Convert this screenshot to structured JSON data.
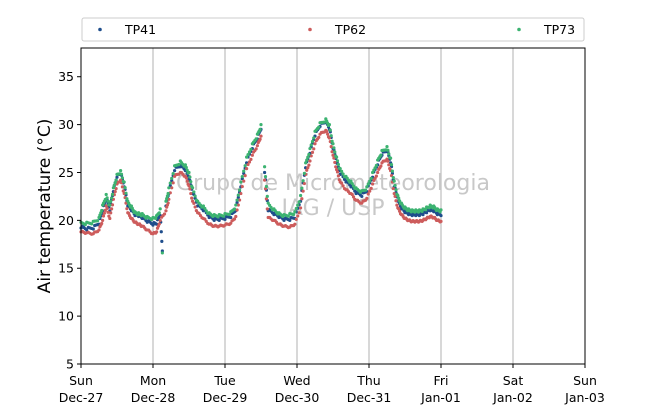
{
  "chart_data": {
    "type": "scatter",
    "ylabel": "Air temperature (°C)",
    "ylim": [
      5,
      38
    ],
    "xlim": [
      "2020-12-27",
      "2021-01-03"
    ],
    "grid": "vertical lines at each day",
    "legend": "top, above plot, horizontal",
    "yticks": [
      "5",
      "10",
      "15",
      "20",
      "25",
      "30",
      "35"
    ],
    "xticks": [
      {
        "day": "Sun",
        "date": "Dec-27"
      },
      {
        "day": "Mon",
        "date": "Dec-28"
      },
      {
        "day": "Tue",
        "date": "Dec-29"
      },
      {
        "day": "Wed",
        "date": "Dec-30"
      },
      {
        "day": "Thu",
        "date": "Dec-31"
      },
      {
        "day": "Fri",
        "date": "Jan-01"
      },
      {
        "day": "Sat",
        "date": "Jan-02"
      },
      {
        "day": "Sun",
        "date": "Jan-03"
      }
    ],
    "watermark": [
      "Grupo de Micrometeorologia",
      "IAG / USP"
    ],
    "x_unit": "days since Dec-27 00:00",
    "series": [
      {
        "name": "TP41",
        "color": "#1f4e8c",
        "points": [
          [
            0.0,
            19.2
          ],
          [
            0.08,
            19.0
          ],
          [
            0.17,
            19.1
          ],
          [
            0.25,
            19.6
          ],
          [
            0.3,
            21.0
          ],
          [
            0.35,
            22.2
          ],
          [
            0.4,
            21.0
          ],
          [
            0.45,
            23.0
          ],
          [
            0.5,
            24.5
          ],
          [
            0.55,
            24.8
          ],
          [
            0.6,
            23.5
          ],
          [
            0.65,
            21.5
          ],
          [
            0.7,
            21.0
          ],
          [
            0.75,
            20.5
          ],
          [
            0.8,
            20.4
          ],
          [
            0.85,
            20.2
          ],
          [
            0.92,
            19.8
          ],
          [
            1.0,
            19.5
          ],
          [
            1.05,
            19.6
          ],
          [
            1.1,
            20.5
          ],
          [
            1.13,
            16.8
          ],
          [
            1.18,
            21.5
          ],
          [
            1.22,
            22.8
          ],
          [
            1.3,
            25.2
          ],
          [
            1.38,
            25.6
          ],
          [
            1.45,
            25.2
          ],
          [
            1.5,
            24.3
          ],
          [
            1.55,
            22.8
          ],
          [
            1.62,
            21.5
          ],
          [
            1.7,
            21.0
          ],
          [
            1.78,
            20.3
          ],
          [
            1.85,
            20.0
          ],
          [
            1.92,
            20.0
          ],
          [
            2.0,
            20.1
          ],
          [
            2.08,
            20.3
          ],
          [
            2.15,
            21.0
          ],
          [
            2.22,
            23.5
          ],
          [
            2.3,
            26.0
          ],
          [
            2.38,
            27.5
          ],
          [
            2.45,
            28.5
          ],
          [
            2.5,
            29.5
          ],
          [
            2.55,
            25.0
          ],
          [
            2.6,
            21.0
          ],
          [
            2.68,
            20.6
          ],
          [
            2.75,
            20.3
          ],
          [
            2.82,
            20.0
          ],
          [
            2.9,
            20.0
          ],
          [
            2.97,
            20.2
          ],
          [
            3.05,
            22.0
          ],
          [
            3.12,
            25.5
          ],
          [
            3.18,
            27.0
          ],
          [
            3.25,
            28.8
          ],
          [
            3.32,
            29.8
          ],
          [
            3.4,
            30.2
          ],
          [
            3.45,
            29.5
          ],
          [
            3.5,
            27.5
          ],
          [
            3.55,
            26.0
          ],
          [
            3.6,
            24.8
          ],
          [
            3.68,
            24.0
          ],
          [
            3.75,
            23.5
          ],
          [
            3.82,
            22.8
          ],
          [
            3.9,
            22.5
          ],
          [
            3.97,
            23.0
          ],
          [
            4.05,
            24.5
          ],
          [
            4.12,
            25.8
          ],
          [
            4.18,
            26.8
          ],
          [
            4.25,
            27.2
          ],
          [
            4.3,
            26.0
          ],
          [
            4.35,
            23.5
          ],
          [
            4.4,
            22.0
          ],
          [
            4.45,
            21.2
          ],
          [
            4.5,
            20.8
          ],
          [
            4.55,
            20.6
          ],
          [
            4.6,
            20.5
          ],
          [
            4.65,
            20.5
          ],
          [
            4.7,
            20.5
          ],
          [
            4.75,
            20.6
          ],
          [
            4.8,
            20.8
          ],
          [
            4.85,
            21.0
          ],
          [
            4.9,
            20.9
          ],
          [
            4.95,
            20.6
          ],
          [
            5.0,
            20.5
          ]
        ]
      },
      {
        "name": "TP62",
        "color": "#cd5c5c",
        "points": [
          [
            0.0,
            18.8
          ],
          [
            0.08,
            18.7
          ],
          [
            0.17,
            18.6
          ],
          [
            0.25,
            19.0
          ],
          [
            0.3,
            20.0
          ],
          [
            0.35,
            21.5
          ],
          [
            0.4,
            20.2
          ],
          [
            0.45,
            22.2
          ],
          [
            0.5,
            23.8
          ],
          [
            0.55,
            24.2
          ],
          [
            0.6,
            22.8
          ],
          [
            0.65,
            20.8
          ],
          [
            0.7,
            20.2
          ],
          [
            0.75,
            19.8
          ],
          [
            0.8,
            19.6
          ],
          [
            0.85,
            19.4
          ],
          [
            0.92,
            19.0
          ],
          [
            1.0,
            18.6
          ],
          [
            1.05,
            18.8
          ],
          [
            1.1,
            20.0
          ],
          [
            1.18,
            21.0
          ],
          [
            1.22,
            22.2
          ],
          [
            1.3,
            24.6
          ],
          [
            1.38,
            25.0
          ],
          [
            1.45,
            24.6
          ],
          [
            1.5,
            23.6
          ],
          [
            1.55,
            22.0
          ],
          [
            1.62,
            20.8
          ],
          [
            1.7,
            20.2
          ],
          [
            1.78,
            19.6
          ],
          [
            1.85,
            19.4
          ],
          [
            1.92,
            19.4
          ],
          [
            2.0,
            19.5
          ],
          [
            2.08,
            19.7
          ],
          [
            2.15,
            20.4
          ],
          [
            2.22,
            22.8
          ],
          [
            2.3,
            25.4
          ],
          [
            2.38,
            26.8
          ],
          [
            2.45,
            27.8
          ],
          [
            2.5,
            28.8
          ],
          [
            2.55,
            24.2
          ],
          [
            2.6,
            20.3
          ],
          [
            2.68,
            20.0
          ],
          [
            2.75,
            19.6
          ],
          [
            2.82,
            19.4
          ],
          [
            2.9,
            19.3
          ],
          [
            2.97,
            19.6
          ],
          [
            3.05,
            21.3
          ],
          [
            3.12,
            24.8
          ],
          [
            3.18,
            26.2
          ],
          [
            3.25,
            28.0
          ],
          [
            3.32,
            29.0
          ],
          [
            3.4,
            29.4
          ],
          [
            3.45,
            28.6
          ],
          [
            3.5,
            26.8
          ],
          [
            3.55,
            25.3
          ],
          [
            3.6,
            24.0
          ],
          [
            3.68,
            23.2
          ],
          [
            3.75,
            22.8
          ],
          [
            3.82,
            22.1
          ],
          [
            3.9,
            21.8
          ],
          [
            3.97,
            22.3
          ],
          [
            4.05,
            23.8
          ],
          [
            4.12,
            25.0
          ],
          [
            4.18,
            26.0
          ],
          [
            4.25,
            26.4
          ],
          [
            4.3,
            25.2
          ],
          [
            4.35,
            22.8
          ],
          [
            4.4,
            21.3
          ],
          [
            4.45,
            20.6
          ],
          [
            4.5,
            20.2
          ],
          [
            4.55,
            20.0
          ],
          [
            4.6,
            19.9
          ],
          [
            4.65,
            19.9
          ],
          [
            4.7,
            19.9
          ],
          [
            4.75,
            20.0
          ],
          [
            4.8,
            20.2
          ],
          [
            4.85,
            20.4
          ],
          [
            4.9,
            20.3
          ],
          [
            4.95,
            20.0
          ],
          [
            5.0,
            19.9
          ]
        ]
      },
      {
        "name": "TP73",
        "color": "#3cb371",
        "points": [
          [
            0.0,
            19.8
          ],
          [
            0.08,
            19.8
          ],
          [
            0.17,
            19.9
          ],
          [
            0.25,
            20.3
          ],
          [
            0.3,
            21.6
          ],
          [
            0.35,
            22.7
          ],
          [
            0.4,
            21.6
          ],
          [
            0.45,
            23.4
          ],
          [
            0.5,
            24.8
          ],
          [
            0.55,
            25.2
          ],
          [
            0.6,
            24.0
          ],
          [
            0.65,
            22.0
          ],
          [
            0.7,
            21.5
          ],
          [
            0.75,
            20.9
          ],
          [
            0.8,
            20.8
          ],
          [
            0.85,
            20.7
          ],
          [
            0.92,
            20.4
          ],
          [
            1.0,
            20.3
          ],
          [
            1.05,
            20.5
          ],
          [
            1.1,
            21.2
          ],
          [
            1.13,
            16.6
          ],
          [
            1.18,
            22.0
          ],
          [
            1.22,
            23.4
          ],
          [
            1.3,
            25.7
          ],
          [
            1.38,
            26.2
          ],
          [
            1.45,
            25.8
          ],
          [
            1.5,
            25.0
          ],
          [
            1.55,
            23.4
          ],
          [
            1.62,
            22.0
          ],
          [
            1.7,
            21.5
          ],
          [
            1.78,
            20.8
          ],
          [
            1.85,
            20.6
          ],
          [
            1.92,
            20.6
          ],
          [
            2.0,
            20.7
          ],
          [
            2.08,
            20.9
          ],
          [
            2.15,
            21.6
          ],
          [
            2.22,
            24.0
          ],
          [
            2.3,
            26.6
          ],
          [
            2.38,
            28.0
          ],
          [
            2.45,
            29.0
          ],
          [
            2.5,
            30.0
          ],
          [
            2.55,
            25.6
          ],
          [
            2.6,
            21.8
          ],
          [
            2.68,
            21.2
          ],
          [
            2.75,
            20.8
          ],
          [
            2.82,
            20.6
          ],
          [
            2.9,
            20.7
          ],
          [
            2.97,
            20.9
          ],
          [
            3.05,
            22.6
          ],
          [
            3.12,
            26.0
          ],
          [
            3.18,
            27.5
          ],
          [
            3.25,
            29.3
          ],
          [
            3.32,
            30.2
          ],
          [
            3.4,
            30.6
          ],
          [
            3.45,
            30.0
          ],
          [
            3.5,
            28.0
          ],
          [
            3.55,
            26.6
          ],
          [
            3.6,
            25.4
          ],
          [
            3.68,
            24.6
          ],
          [
            3.75,
            24.1
          ],
          [
            3.82,
            23.4
          ],
          [
            3.9,
            23.1
          ],
          [
            3.97,
            23.5
          ],
          [
            4.05,
            25.0
          ],
          [
            4.12,
            26.3
          ],
          [
            4.18,
            27.3
          ],
          [
            4.25,
            27.7
          ],
          [
            4.3,
            26.5
          ],
          [
            4.35,
            24.1
          ],
          [
            4.4,
            22.6
          ],
          [
            4.45,
            21.8
          ],
          [
            4.5,
            21.4
          ],
          [
            4.55,
            21.2
          ],
          [
            4.6,
            21.1
          ],
          [
            4.65,
            21.1
          ],
          [
            4.7,
            21.1
          ],
          [
            4.75,
            21.2
          ],
          [
            4.8,
            21.4
          ],
          [
            4.85,
            21.6
          ],
          [
            4.9,
            21.5
          ],
          [
            4.95,
            21.2
          ],
          [
            5.0,
            21.1
          ]
        ]
      }
    ]
  }
}
